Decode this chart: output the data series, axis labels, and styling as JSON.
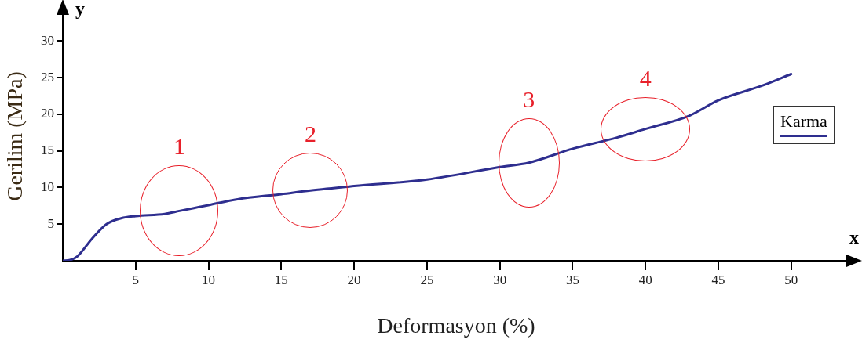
{
  "chart_data": {
    "type": "line",
    "xlabel": "Deformasyon (%)",
    "ylabel": "Gerilim (MPa)",
    "x": [
      0,
      0.5,
      1,
      2,
      3,
      4,
      5,
      7,
      8,
      10,
      12,
      15,
      17,
      20,
      25,
      30,
      32,
      35,
      38,
      40,
      43,
      45,
      48,
      50
    ],
    "series": [
      {
        "name": "Karma",
        "color": "#2e2e8f",
        "values": [
          0,
          0.1,
          0.6,
          3.0,
          5.0,
          5.8,
          6.1,
          6.4,
          6.8,
          7.6,
          8.4,
          9.1,
          9.6,
          10.2,
          11.1,
          12.8,
          13.4,
          15.3,
          16.8,
          18.0,
          19.8,
          21.9,
          23.9,
          25.5
        ]
      }
    ],
    "xlim": [
      0,
      54
    ],
    "ylim": [
      0,
      34
    ],
    "xticks": [
      5,
      10,
      15,
      20,
      25,
      30,
      35,
      40,
      45,
      50
    ],
    "yticks": [
      5,
      10,
      15,
      20,
      25,
      30
    ],
    "grid": false,
    "legend": "right",
    "marker": "none",
    "line_style": "solid",
    "annotations": [
      "y",
      "x",
      {
        "text": "1",
        "x": 8,
        "y": 6.8
      },
      {
        "text": "2",
        "x": 17,
        "y": 9.6
      },
      {
        "text": "3",
        "x": 32,
        "y": 13.4
      },
      {
        "text": "4",
        "x": 40,
        "y": 18.0
      }
    ]
  }
}
